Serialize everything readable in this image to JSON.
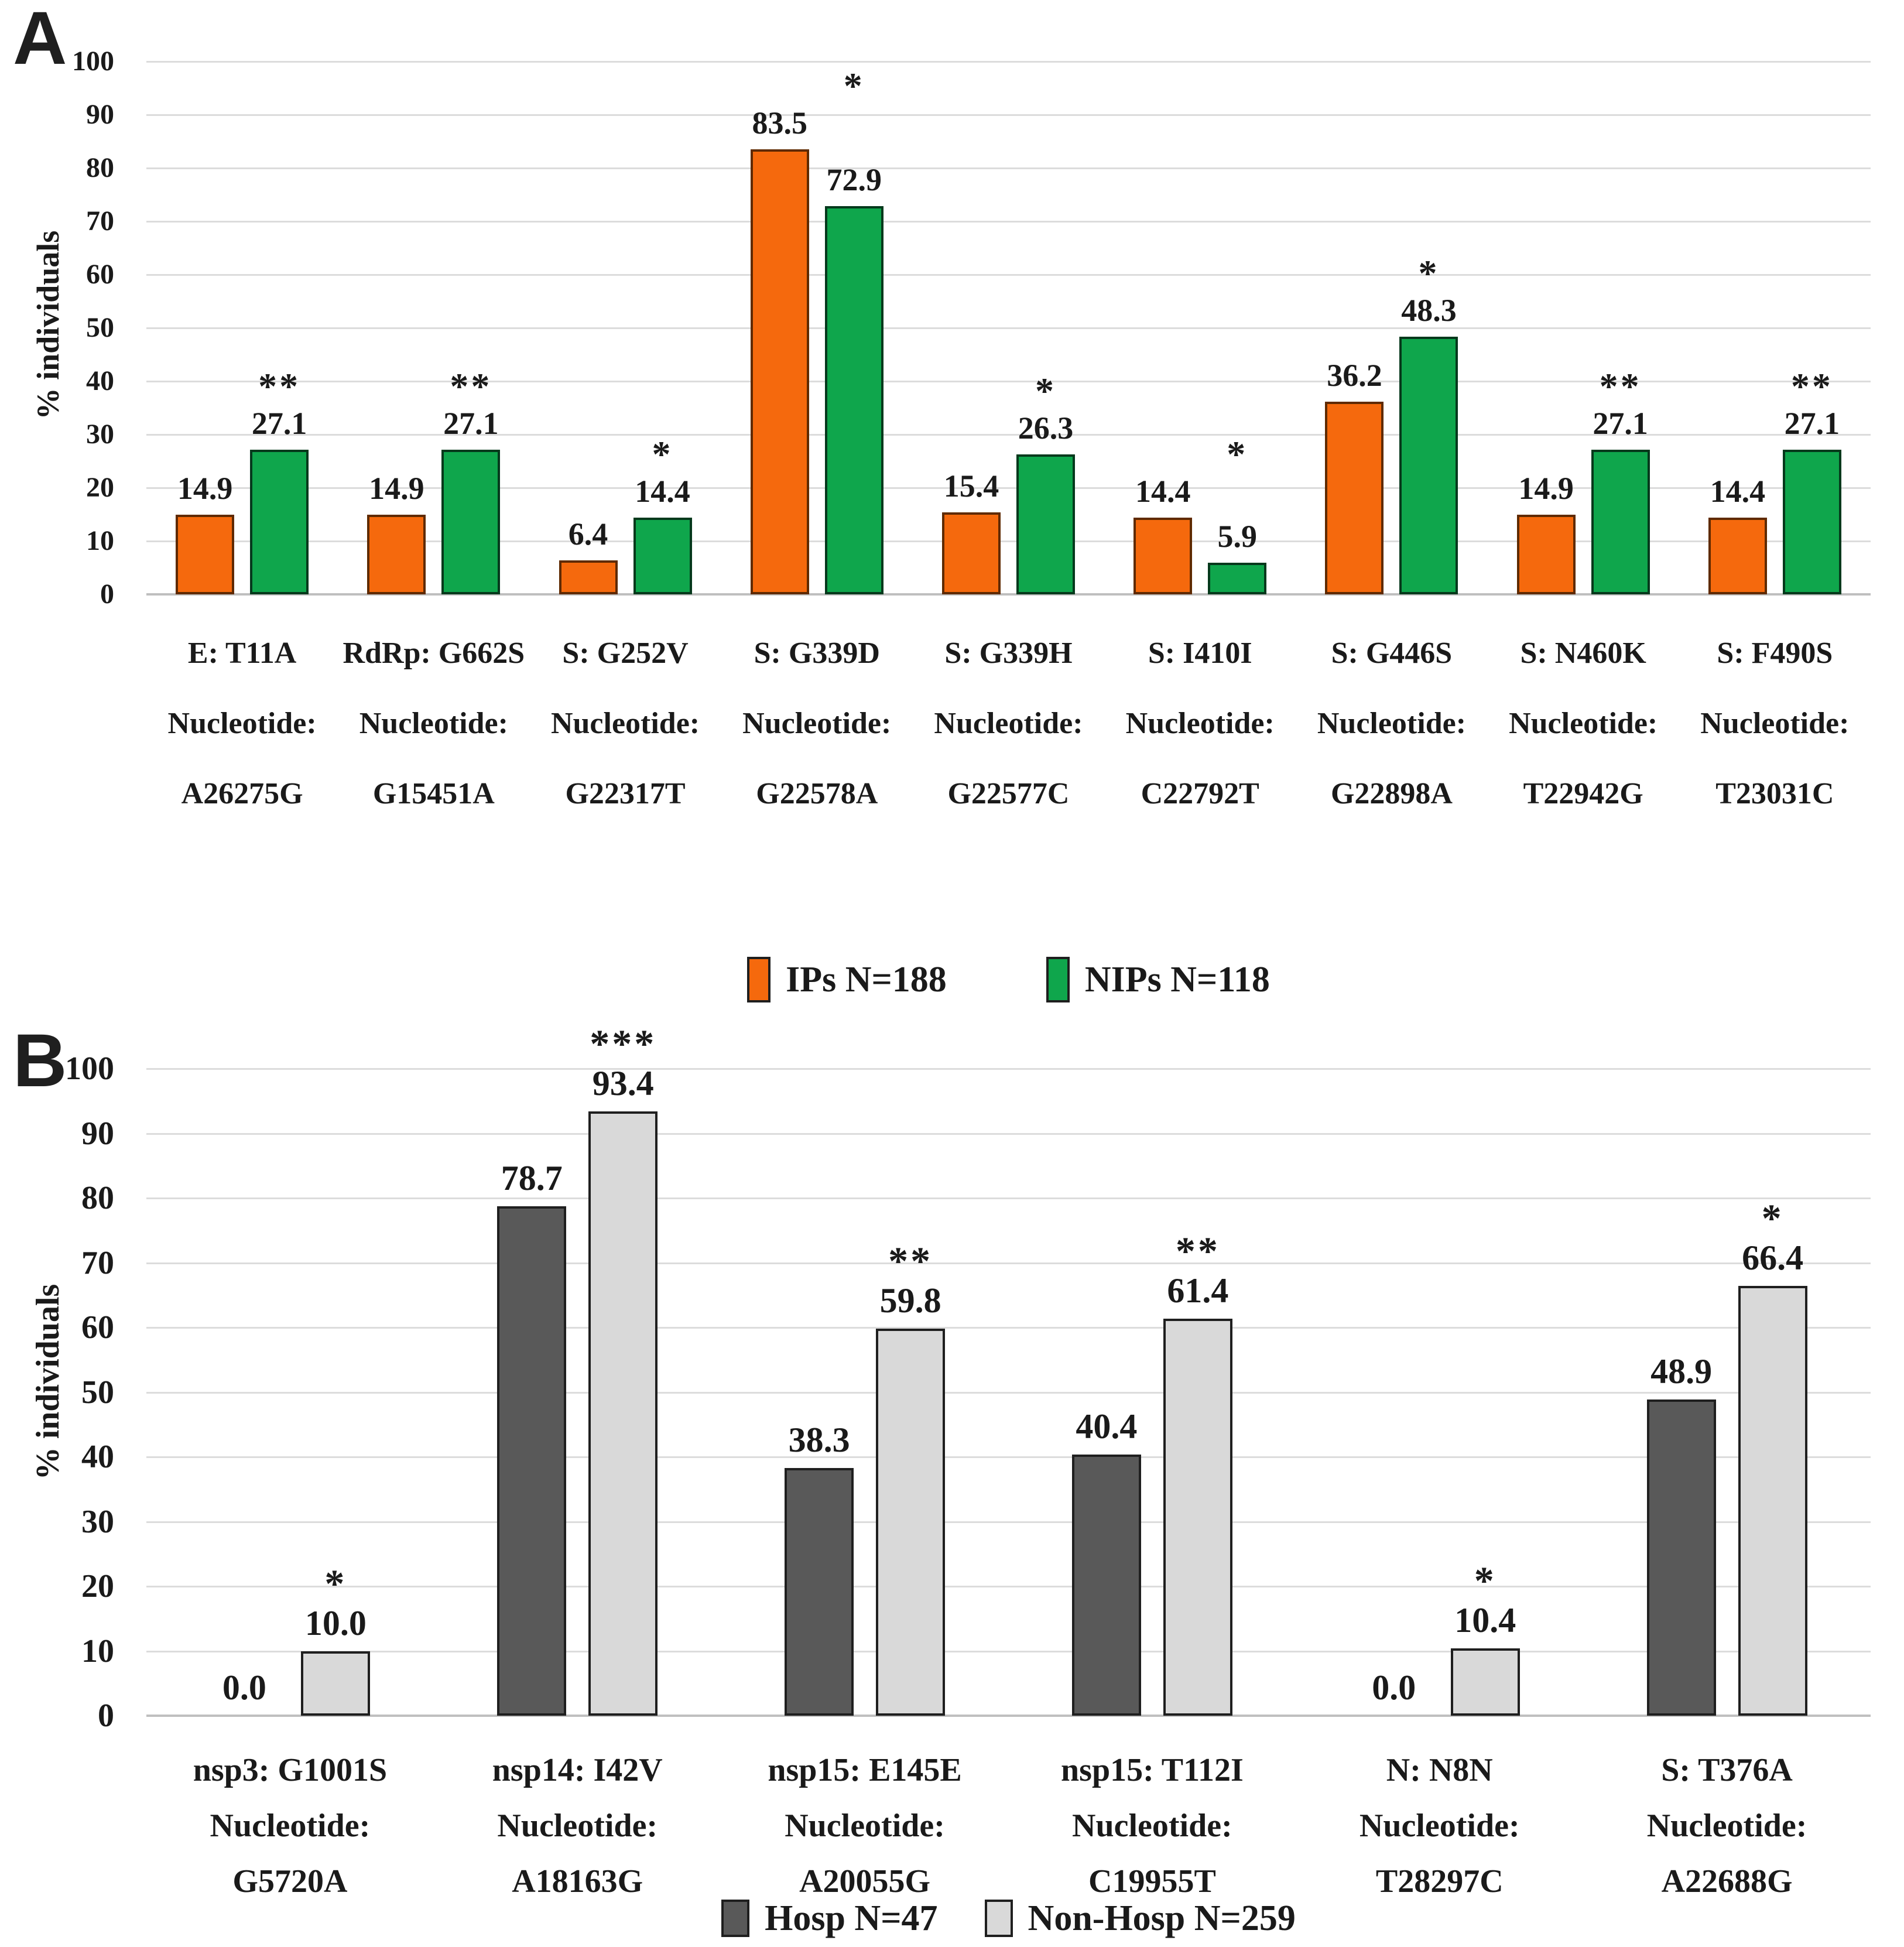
{
  "figure_title": "",
  "axes": {
    "y_axis_title": "% individuals"
  },
  "colors": {
    "gridline": "#dcdcdc",
    "axis_line": "#bfbfbf",
    "text": "#1a1a1a"
  },
  "chart_data": [
    {
      "type": "bar",
      "panel_label": "A",
      "title": "",
      "xlabel": "",
      "ylabel": "% individuals",
      "ylim": [
        0,
        100
      ],
      "ytick_step": 10,
      "grid": true,
      "legend_position": "bottom",
      "categories": [
        [
          "E: T11A",
          "Nucleotide:",
          "A26275G"
        ],
        [
          "RdRp: G662S",
          "Nucleotide:",
          "G15451A"
        ],
        [
          "S: G252V",
          "Nucleotide:",
          "G22317T"
        ],
        [
          "S: G339D",
          "Nucleotide:",
          "G22578A"
        ],
        [
          "S: G339H",
          "Nucleotide:",
          "G22577C"
        ],
        [
          "S: I410I",
          "Nucleotide:",
          "C22792T"
        ],
        [
          "S: G446S",
          "Nucleotide:",
          "G22898A"
        ],
        [
          "S: N460K",
          "Nucleotide:",
          "T22942G"
        ],
        [
          "S: F490S",
          "Nucleotide:",
          "T23031C"
        ]
      ],
      "series": [
        {
          "name": "IPs N=188",
          "color": "#F5690D",
          "border": "#5f2a00",
          "values": [
            14.9,
            14.9,
            6.4,
            83.5,
            15.4,
            14.4,
            36.2,
            14.9,
            14.4
          ]
        },
        {
          "name": "NIPs N=118",
          "color": "#0FA64C",
          "border": "#05391c",
          "values": [
            27.1,
            27.1,
            14.4,
            72.9,
            26.3,
            5.9,
            48.3,
            27.1,
            27.1
          ]
        }
      ],
      "significance": [
        "**",
        "**",
        "*",
        "*",
        "*",
        "*",
        "*",
        "**",
        "**"
      ]
    },
    {
      "type": "bar",
      "panel_label": "B",
      "title": "",
      "xlabel": "",
      "ylabel": "% individuals",
      "ylim": [
        0,
        100
      ],
      "ytick_step": 10,
      "grid": true,
      "legend_position": "bottom",
      "categories": [
        [
          "nsp3: G1001S",
          "Nucleotide:",
          "G5720A"
        ],
        [
          "nsp14: I42V",
          "Nucleotide:",
          "A18163G"
        ],
        [
          "nsp15: E145E",
          "Nucleotide:",
          "A20055G"
        ],
        [
          "nsp15: T112I",
          "Nucleotide:",
          "C19955T"
        ],
        [
          "N: N8N",
          "Nucleotide:",
          "T28297C"
        ],
        [
          "S: T376A",
          "Nucleotide:",
          "A22688G"
        ]
      ],
      "series": [
        {
          "name": "Hosp N=47",
          "color": "#595959",
          "border": "#1f1f1f",
          "values": [
            0.0,
            78.7,
            38.3,
            40.4,
            0.0,
            48.9
          ]
        },
        {
          "name": "Non-Hosp N=259",
          "color": "#D9D9D9",
          "border": "#1f1f1f",
          "values": [
            10.0,
            93.4,
            59.8,
            61.4,
            10.4,
            66.4
          ]
        }
      ],
      "significance": [
        "*",
        "***",
        "**",
        "**",
        "*",
        "*"
      ]
    }
  ]
}
